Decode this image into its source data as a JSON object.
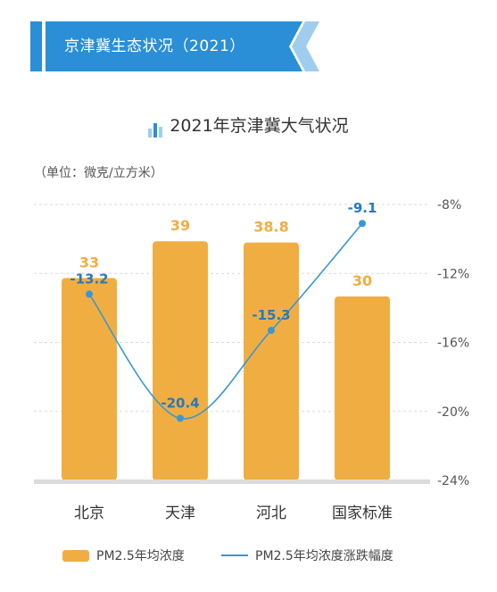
{
  "banner": {
    "title": "京津冀生态状况（2021）"
  },
  "chart_title": "2021年京津冀大气状况",
  "unit_label": "（单位：微克/立方米）",
  "colors": {
    "bar": "#f0ae42",
    "bar_label": "#f0ae42",
    "line": "#3a97d4",
    "line_label": "#2878c0",
    "banner": "#2a8fd6",
    "banner_light": "#9fcdee"
  },
  "chart_data": {
    "type": "bar",
    "categories": [
      "北京",
      "天津",
      "河北",
      "国家标准"
    ],
    "series": [
      {
        "name": "PM2.5年均浓度",
        "type": "bar",
        "axis": "left",
        "values": [
          33,
          39,
          38.8,
          30
        ]
      },
      {
        "name": "PM2.5年均浓度涨跌幅度",
        "type": "line",
        "axis": "right",
        "values": [
          -13.2,
          -20.4,
          -15.3,
          -9.1
        ]
      }
    ],
    "bar_labels": [
      "33",
      "39",
      "38.8",
      "30"
    ],
    "line_labels": [
      "-13.2",
      "-20.4",
      "-15.3",
      "-9.1"
    ],
    "y_left_range": [
      0,
      45
    ],
    "y_right_range": [
      -24,
      -8
    ],
    "y_right_ticks": [
      "-8%",
      "-12%",
      "-16%",
      "-20%",
      "-24%"
    ],
    "grid": true,
    "legend_position": "bottom"
  }
}
